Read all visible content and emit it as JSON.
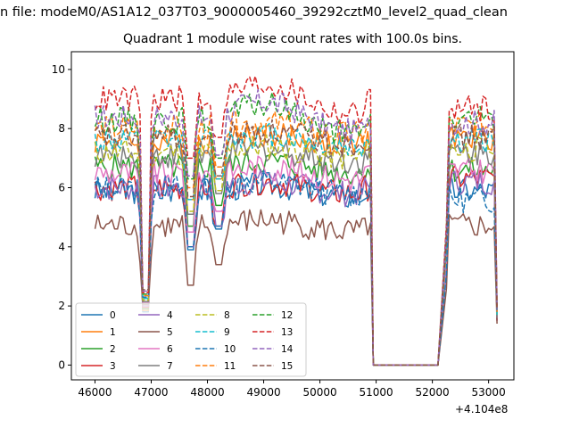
{
  "figure": {
    "suptitle": "n file: modeM0/AS1A12_037T03_9000005460_39292cztM0_level2_quad_clean",
    "title": "Quadrant 1 module wise count rates with 100.0s bins.",
    "x_offset_label": "+4.104e8"
  },
  "chart_data": {
    "type": "line",
    "title": "Quadrant 1 module wise count rates with 100.0s bins.",
    "xlabel": "",
    "ylabel": "",
    "x_offset": 410400000,
    "xlim": [
      45580,
      53450
    ],
    "ylim": [
      -0.5,
      10.6
    ],
    "xticks": [
      46000,
      47000,
      48000,
      49000,
      50000,
      51000,
      52000,
      53000
    ],
    "xtick_labels": [
      "46000",
      "47000",
      "48000",
      "49000",
      "50000",
      "51000",
      "52000",
      "53000"
    ],
    "yticks": [
      0,
      2,
      4,
      6,
      8,
      10
    ],
    "ytick_labels": [
      "0",
      "2",
      "4",
      "6",
      "8",
      "10"
    ],
    "grid": false,
    "legend_placement": "lower-left",
    "legend_columns": 4,
    "segments": [
      {
        "start": 46000,
        "end": 50900
      },
      {
        "start": 52200,
        "end": 53150
      }
    ],
    "gap_fill": {
      "value": 0,
      "x": [
        50950,
        51100,
        51300,
        51500,
        51700,
        51900,
        52100
      ]
    },
    "dips": [
      46900,
      47700,
      48200
    ],
    "series": [
      {
        "name": "0",
        "color": "#1f77b4",
        "dash": "solid",
        "base": 5.9,
        "second_base": 5.9,
        "end_value": 1.6
      },
      {
        "name": "1",
        "color": "#ff7f0e",
        "dash": "solid",
        "base": 7.6,
        "second_base": 7.7,
        "end_value": 1.6
      },
      {
        "name": "2",
        "color": "#2ca02c",
        "dash": "solid",
        "base": 6.7,
        "second_base": 6.6,
        "end_value": 1.6
      },
      {
        "name": "3",
        "color": "#d62728",
        "dash": "solid",
        "base": 6.0,
        "second_base": 6.3,
        "end_value": 1.5
      },
      {
        "name": "4",
        "color": "#9467bd",
        "dash": "solid",
        "base": 6.0,
        "second_base": 6.2,
        "end_value": 1.5
      },
      {
        "name": "5",
        "color": "#8c564b",
        "dash": "solid",
        "base": 4.7,
        "second_base": 4.7,
        "end_value": 1.4
      },
      {
        "name": "6",
        "color": "#e377c2",
        "dash": "solid",
        "base": 6.5,
        "second_base": 6.6,
        "end_value": 1.6
      },
      {
        "name": "7",
        "color": "#7f7f7f",
        "dash": "solid",
        "base": 7.1,
        "second_base": 7.2,
        "end_value": 1.6
      },
      {
        "name": "8",
        "color": "#bcbd22",
        "dash": "dashed",
        "base": 7.2,
        "second_base": 7.3,
        "end_value": 1.7
      },
      {
        "name": "9",
        "color": "#17becf",
        "dash": "dashed",
        "base": 7.6,
        "second_base": 7.6,
        "end_value": 1.7
      },
      {
        "name": "10",
        "color": "#1f77b4",
        "dash": "dashed",
        "base": 6.0,
        "second_base": 5.6,
        "end_value": 1.8
      },
      {
        "name": "11",
        "color": "#ff7f0e",
        "dash": "dashed",
        "base": 8.0,
        "second_base": 8.1,
        "end_value": 1.8
      },
      {
        "name": "12",
        "color": "#2ca02c",
        "dash": "dashed",
        "base": 8.3,
        "second_base": 8.3,
        "end_value": 1.9
      },
      {
        "name": "13",
        "color": "#d62728",
        "dash": "dashed",
        "base": 9.0,
        "second_base": 8.7,
        "end_value": 2.0
      },
      {
        "name": "14",
        "color": "#9467bd",
        "dash": "dashed",
        "base": 8.4,
        "second_base": 8.2,
        "end_value": 1.9
      },
      {
        "name": "15",
        "color": "#8c564b",
        "dash": "dashed",
        "base": 7.7,
        "second_base": 7.7,
        "end_value": 1.9
      }
    ]
  }
}
